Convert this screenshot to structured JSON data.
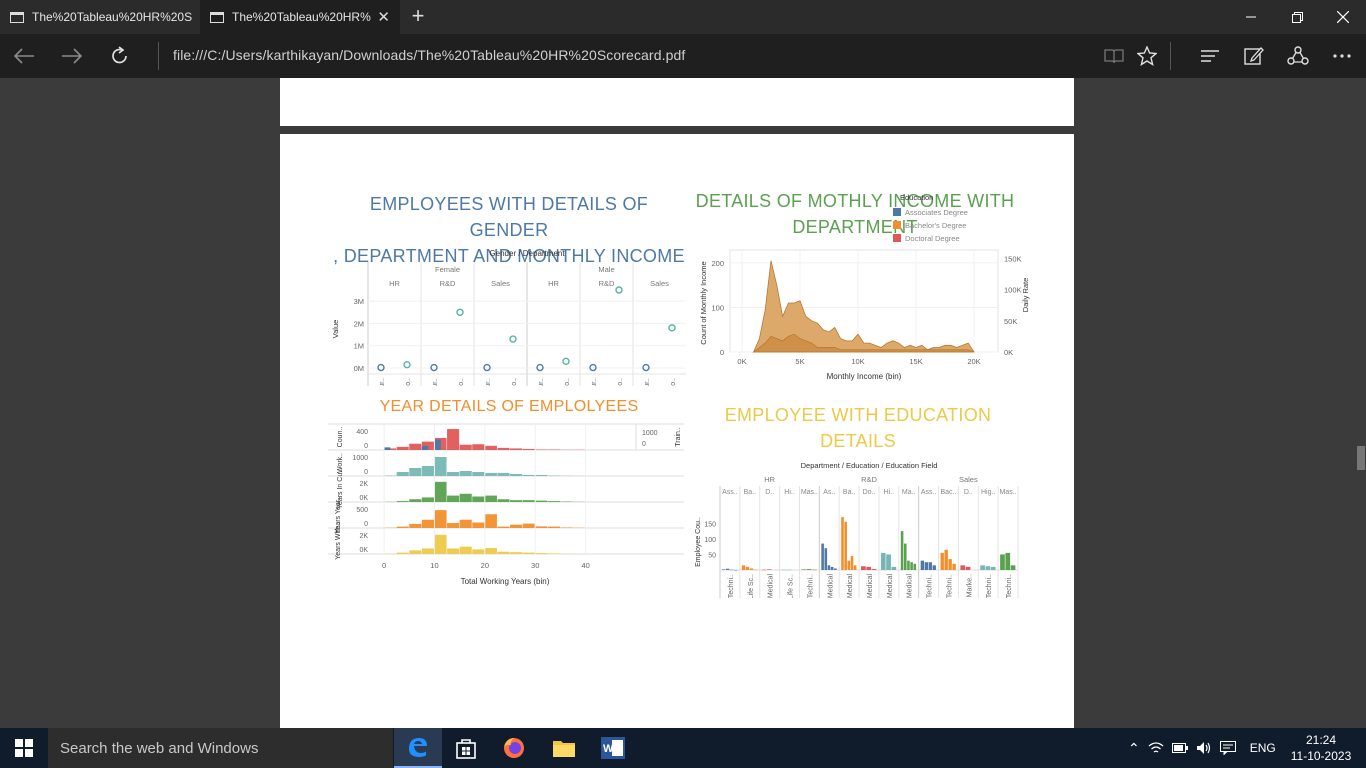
{
  "browser": {
    "tabs": [
      {
        "title": "The%20Tableau%20HR%20S"
      },
      {
        "title": "The%20Tableau%20HR%"
      }
    ],
    "url": "file:///C:/Users/karthikayan/Downloads/The%20Tableau%20HR%20Scorecard.pdf"
  },
  "dashboard": {
    "title1": [
      "EMPLOYEES WITH DETAILS OF GENDER",
      ", DEPARTMENT AND MONTHLY INCOME"
    ],
    "title2": [
      "DETAILS OF MOTHLY INCOME WITH",
      "DEPARTMENT"
    ],
    "title3": "YEAR DETAILS OF EMPLOLYEES",
    "title4": [
      "EMPLOYEE WITH EDUCATION",
      "DETAILS"
    ],
    "colors": {
      "blue": "#4e79a7",
      "teal": "#76b7b2",
      "green": "#59a14f",
      "orange": "#f28e2b",
      "red": "#e15759",
      "gold": "#edc948",
      "tan": "#d9a05b"
    }
  },
  "chart_data": [
    {
      "type": "scatter",
      "header": "Gender / Department",
      "genders": [
        "Female",
        "Male"
      ],
      "departments": [
        "HR",
        "R&D",
        "Sales",
        "HR",
        "R&D",
        "Sales"
      ],
      "measures": [
        "CF-cur..",
        "Monthl y Inco.."
      ],
      "ylabel": "Value",
      "yticks": [
        "0M",
        "1M",
        "2M",
        "3M"
      ],
      "ylim": [
        0,
        3.5
      ],
      "points": [
        {
          "dept": 0,
          "measure": 0,
          "y": 0.02
        },
        {
          "dept": 0,
          "measure": 1,
          "y": 0.15
        },
        {
          "dept": 1,
          "measure": 0,
          "y": 0.02
        },
        {
          "dept": 1,
          "measure": 1,
          "y": 2.5
        },
        {
          "dept": 2,
          "measure": 0,
          "y": 0.02
        },
        {
          "dept": 2,
          "measure": 1,
          "y": 1.3
        },
        {
          "dept": 3,
          "measure": 0,
          "y": 0.02
        },
        {
          "dept": 3,
          "measure": 1,
          "y": 0.3
        },
        {
          "dept": 4,
          "measure": 0,
          "y": 0.02
        },
        {
          "dept": 4,
          "measure": 1,
          "y": 3.6
        },
        {
          "dept": 5,
          "measure": 0,
          "y": 0.02
        },
        {
          "dept": 5,
          "measure": 1,
          "y": 1.8
        }
      ]
    },
    {
      "type": "area",
      "xlabel": "Monthly Income (bin)",
      "ylabel": "Count of Monthly Income",
      "y2label": "Daily Rate",
      "xticks": [
        "0K",
        "5K",
        "10K",
        "15K",
        "20K"
      ],
      "yticks": [
        "0",
        "100",
        "200"
      ],
      "y2ticks": [
        "0K",
        "50K",
        "100K",
        "150K"
      ],
      "xlim": [
        0,
        20000
      ],
      "ylim": [
        0,
        220
      ],
      "legend_title": "Education",
      "legend": [
        "Associates Degree",
        "Bachelor's Degree",
        "Doctoral Degree"
      ],
      "x": [
        1000,
        1500,
        2000,
        2500,
        3000,
        3500,
        4000,
        4500,
        5000,
        5500,
        6000,
        6500,
        7000,
        7500,
        8000,
        8500,
        9000,
        9500,
        10000,
        10500,
        11000,
        11500,
        12000,
        12500,
        13000,
        13500,
        14000,
        14500,
        15000,
        15500,
        16000,
        16500,
        17000,
        17500,
        18000,
        18500,
        19000,
        19500,
        20000
      ],
      "series": [
        {
          "values": [
            0,
            30,
            95,
            205,
            150,
            80,
            110,
            110,
            115,
            80,
            70,
            65,
            50,
            45,
            55,
            30,
            25,
            25,
            40,
            20,
            20,
            15,
            10,
            20,
            25,
            20,
            10,
            15,
            10,
            15,
            5,
            10,
            10,
            15,
            15,
            10,
            15,
            20,
            0
          ]
        },
        {
          "values": [
            0,
            10,
            20,
            35,
            30,
            25,
            35,
            40,
            30,
            25,
            20,
            10,
            10,
            10,
            10,
            5,
            5,
            5,
            5,
            5,
            5,
            5,
            5,
            5,
            5,
            5,
            5,
            5,
            5,
            5,
            5,
            5,
            5,
            5,
            5,
            5,
            5,
            5,
            0
          ]
        }
      ]
    },
    {
      "type": "bar",
      "xlabel": "Total Working Years (bin)",
      "xticks": [
        "0",
        "10",
        "20",
        "30",
        "40"
      ],
      "xlim": [
        -2,
        50
      ],
      "bin_width": 2.5,
      "right_panel": {
        "label": "Train..",
        "ticks": [
          "1000",
          "0"
        ]
      },
      "rows": [
        {
          "label": "Coun..",
          "ticks": [
            "400",
            "0"
          ],
          "max": 420,
          "color": "#e15759",
          "values": [
            30,
            60,
            120,
            160,
            230,
            400,
            100,
            110,
            80,
            40,
            30,
            20,
            10,
            10,
            5,
            5,
            0,
            0,
            0
          ],
          "extra": {
            "color": "#4e79a7",
            "bins": [
              0,
              3,
              4
            ],
            "values": [
              50,
              80,
              200
            ]
          }
        },
        {
          "label": "Work..",
          "ticks": [
            "1000",
            "0"
          ],
          "max": 1100,
          "color": "#76b7b2",
          "values": [
            20,
            200,
            400,
            500,
            950,
            200,
            250,
            200,
            150,
            150,
            100,
            50,
            50,
            20,
            10,
            5,
            0,
            0,
            0
          ]
        },
        {
          "label": "Years In Cu..",
          "ticks": [
            "2K",
            "0K"
          ],
          "max": 2400,
          "color": "#59a14f",
          "values": [
            20,
            100,
            300,
            500,
            2200,
            700,
            900,
            600,
            700,
            300,
            200,
            200,
            150,
            100,
            50,
            20,
            0,
            0,
            0
          ]
        },
        {
          "label": "Years Year..",
          "ticks": [
            "500",
            "0"
          ],
          "max": 800,
          "color": "#f28e2b",
          "values": [
            10,
            50,
            150,
            300,
            650,
            180,
            300,
            200,
            500,
            50,
            120,
            160,
            60,
            50,
            20,
            10,
            0,
            0,
            0
          ]
        },
        {
          "label": "Years With..",
          "ticks": [
            "2K",
            "0K"
          ],
          "max": 2400,
          "color": "#edc948",
          "values": [
            20,
            150,
            400,
            600,
            2100,
            600,
            800,
            500,
            650,
            250,
            200,
            150,
            100,
            60,
            30,
            10,
            0,
            0,
            0
          ]
        }
      ]
    },
    {
      "type": "bar",
      "header": "Department / Education / Education Field",
      "departments": [
        "HR",
        "R&D",
        "Sales"
      ],
      "education": [
        "Ass..",
        "Ba..",
        "D..",
        "Hi..",
        "Mas..",
        "As..",
        "Ba..",
        "Do..",
        "Hi..",
        "Ma..",
        "Ass..",
        "Bac..",
        "D..",
        "Hig..",
        "Mas.."
      ],
      "fields_labels": [
        "Techni..",
        "Life Sc..",
        "Medical",
        "Life Sc..",
        "Techni..",
        "Medical",
        "Medical",
        "Medical",
        "Medical",
        "Medical",
        "Techni..",
        "Techni..",
        "Marke..",
        "Techni..",
        "Techni.."
      ],
      "ylabel": "Employee Cou..",
      "yticks": [
        "50",
        "100",
        "150"
      ],
      "ylim": [
        0,
        180
      ],
      "groups": [
        {
          "color": "#4e79a7",
          "values": [
            2,
            4,
            1,
            0
          ]
        },
        {
          "color": "#f28e2b",
          "values": [
            15,
            10,
            5,
            1
          ]
        },
        {
          "color": "#e15759",
          "values": [
            1,
            2
          ]
        },
        {
          "color": "#76b7b2",
          "values": [
            1,
            1
          ]
        },
        {
          "color": "#59a14f",
          "values": [
            2,
            3,
            1
          ]
        },
        {
          "color": "#4e79a7",
          "values": [
            85,
            70,
            15,
            10,
            5
          ]
        },
        {
          "color": "#f28e2b",
          "values": [
            170,
            155,
            30,
            45,
            15
          ]
        },
        {
          "color": "#e15759",
          "values": [
            12,
            10,
            3
          ]
        },
        {
          "color": "#76b7b2",
          "values": [
            55,
            50,
            10
          ]
        },
        {
          "color": "#59a14f",
          "values": [
            125,
            85,
            30,
            25,
            20
          ]
        },
        {
          "color": "#4e79a7",
          "values": [
            30,
            25,
            25,
            15
          ]
        },
        {
          "color": "#f28e2b",
          "values": [
            55,
            65,
            35,
            20
          ]
        },
        {
          "color": "#e15759",
          "values": [
            15,
            10
          ]
        },
        {
          "color": "#76b7b2",
          "values": [
            15,
            12,
            10
          ]
        },
        {
          "color": "#59a14f",
          "values": [
            50,
            55,
            15
          ]
        }
      ]
    }
  ],
  "taskbar": {
    "search_placeholder": "Search the web and Windows",
    "language": "ENG",
    "time": "21:24",
    "date": "11-10-2023"
  }
}
